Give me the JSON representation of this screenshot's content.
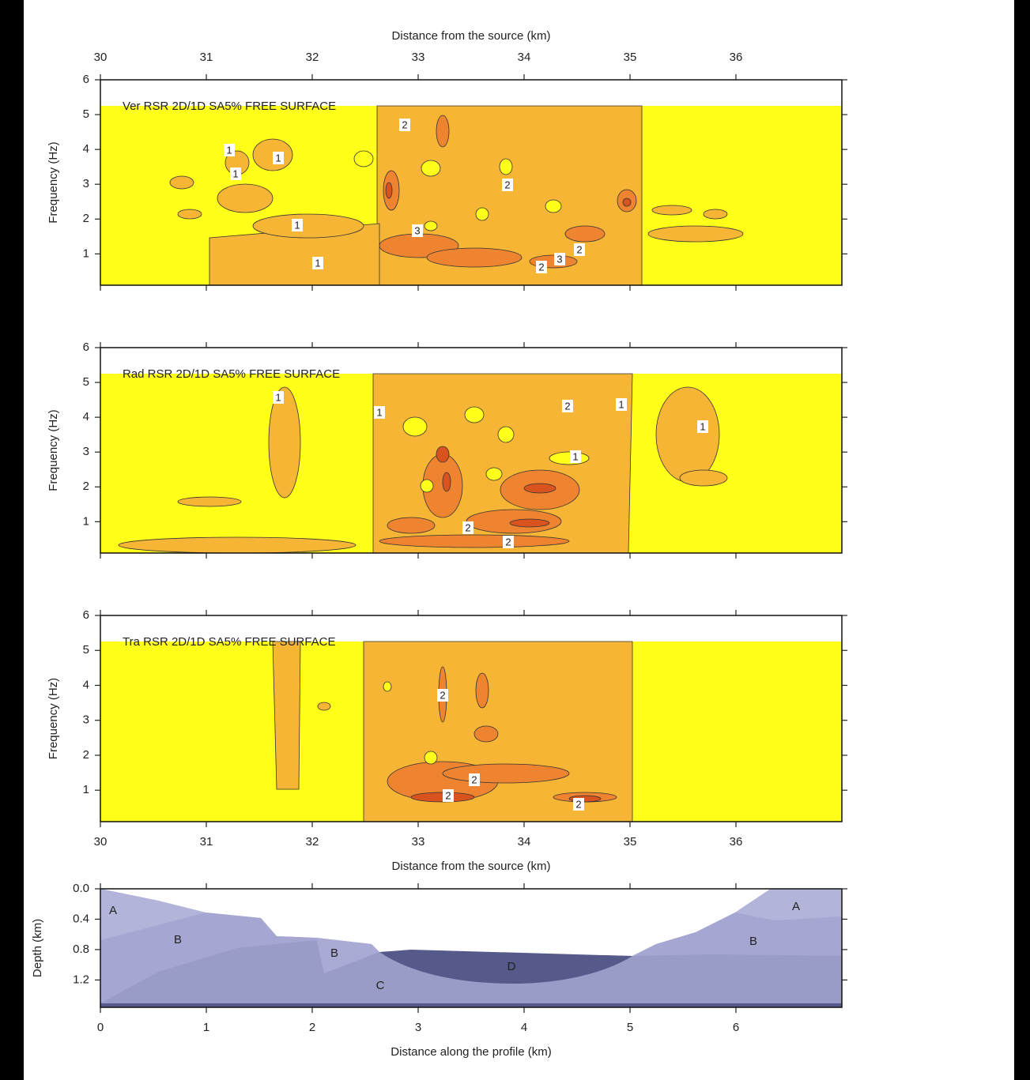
{
  "chart_data": [
    {
      "type": "contour",
      "title": "Ver RSR 2D/1D SA5% FREE SURFACE",
      "xlabel": "Distance from the source (km)",
      "xaxis_side": "top",
      "ylabel": "Frequency (Hz)",
      "xlim": [
        30,
        37
      ],
      "xticks": [
        30,
        31,
        32,
        33,
        34,
        35,
        36
      ],
      "ylim": [
        0.1,
        6
      ],
      "yticks": [
        1,
        2,
        3,
        4,
        5,
        6
      ],
      "contour_labels": [
        1,
        1,
        1,
        1,
        1,
        2,
        2,
        3,
        2,
        3,
        2
      ]
    },
    {
      "type": "contour",
      "title": "Rad RSR 2D/1D SA5% FREE SURFACE",
      "ylabel": "Frequency (Hz)",
      "xlim": [
        30,
        37
      ],
      "xticks": [
        30,
        31,
        32,
        33,
        34,
        35,
        36
      ],
      "ylim": [
        0.1,
        6
      ],
      "yticks": [
        1,
        2,
        3,
        4,
        5,
        6
      ],
      "contour_labels": [
        1,
        1,
        2,
        1,
        1,
        1,
        2,
        2
      ]
    },
    {
      "type": "contour",
      "title": "Tra RSR 2D/1D SA5% FREE SURFACE",
      "xlabel": "Distance from the source (km)",
      "xaxis_side": "bottom",
      "ylabel": "Frequency (Hz)",
      "xlim": [
        30,
        37
      ],
      "xticks": [
        30,
        31,
        32,
        33,
        34,
        35,
        36
      ],
      "ylim": [
        0.1,
        6
      ],
      "yticks": [
        1,
        2,
        3,
        4,
        5,
        6
      ],
      "contour_labels": [
        2,
        2,
        2,
        2
      ]
    },
    {
      "type": "cross-section",
      "xlabel": "Distance along the profile (km)",
      "xaxis_side": "bottom",
      "ylabel": "Depth (km)",
      "y_inverted": true,
      "xlim": [
        0,
        7
      ],
      "xticks": [
        0,
        1,
        2,
        3,
        4,
        5,
        6
      ],
      "ylim": [
        0,
        1.56
      ],
      "yticks": [
        {
          "value": 0,
          "label": "0.0"
        },
        0.4,
        0.8,
        1.2
      ],
      "region_labels": [
        "A",
        "B",
        "B",
        "C",
        "D",
        "A",
        "B"
      ]
    }
  ]
}
